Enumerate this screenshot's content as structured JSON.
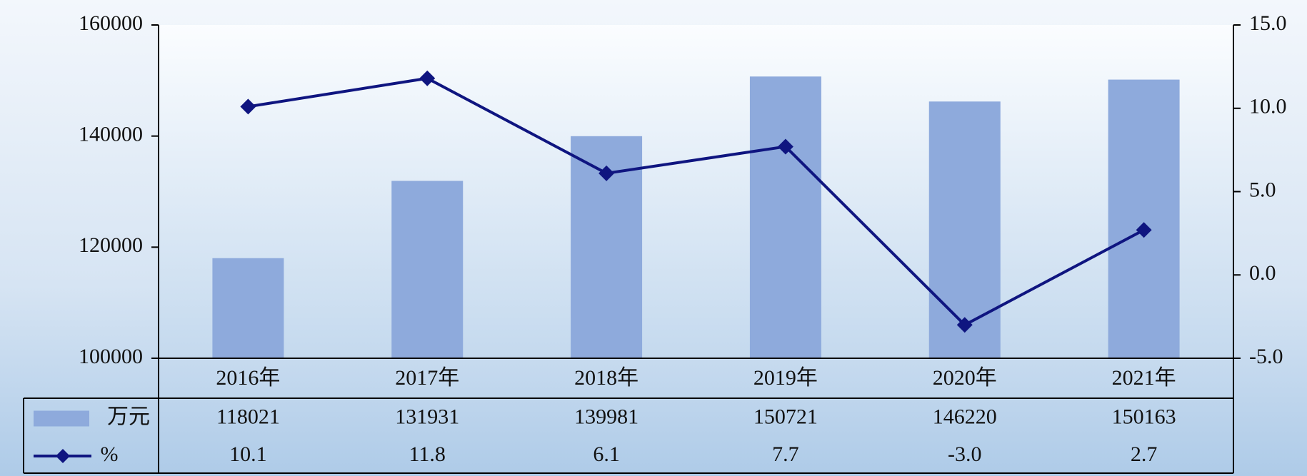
{
  "chart_data": {
    "type": "combo",
    "categories": [
      "2016年",
      "2017年",
      "2018年",
      "2019年",
      "2020年",
      "2021年"
    ],
    "series": [
      {
        "name": "万元",
        "type": "bar",
        "color": "#8eaadc",
        "values": [
          118021,
          131931,
          139981,
          150721,
          146220,
          150163
        ]
      },
      {
        "name": "%",
        "type": "line",
        "axis": "y2",
        "color": "#0f1580",
        "values": [
          10.1,
          11.8,
          6.1,
          7.7,
          -3.0,
          2.7
        ],
        "value_labels": [
          "10.1",
          "11.8",
          "6.1",
          "7.7",
          "-3.0",
          "2.7"
        ]
      }
    ],
    "ylim": [
      100000,
      160000
    ],
    "yticks": [
      100000,
      120000,
      140000,
      160000
    ],
    "y2lim": [
      -5,
      15
    ],
    "y2ticks": [
      {
        "value": -5,
        "label": "-5.0"
      },
      {
        "value": 0,
        "label": "0.0"
      },
      {
        "value": 5,
        "label": "5.0"
      },
      {
        "value": 10,
        "label": "10.0"
      },
      {
        "value": 15,
        "label": "15.0"
      }
    ]
  }
}
